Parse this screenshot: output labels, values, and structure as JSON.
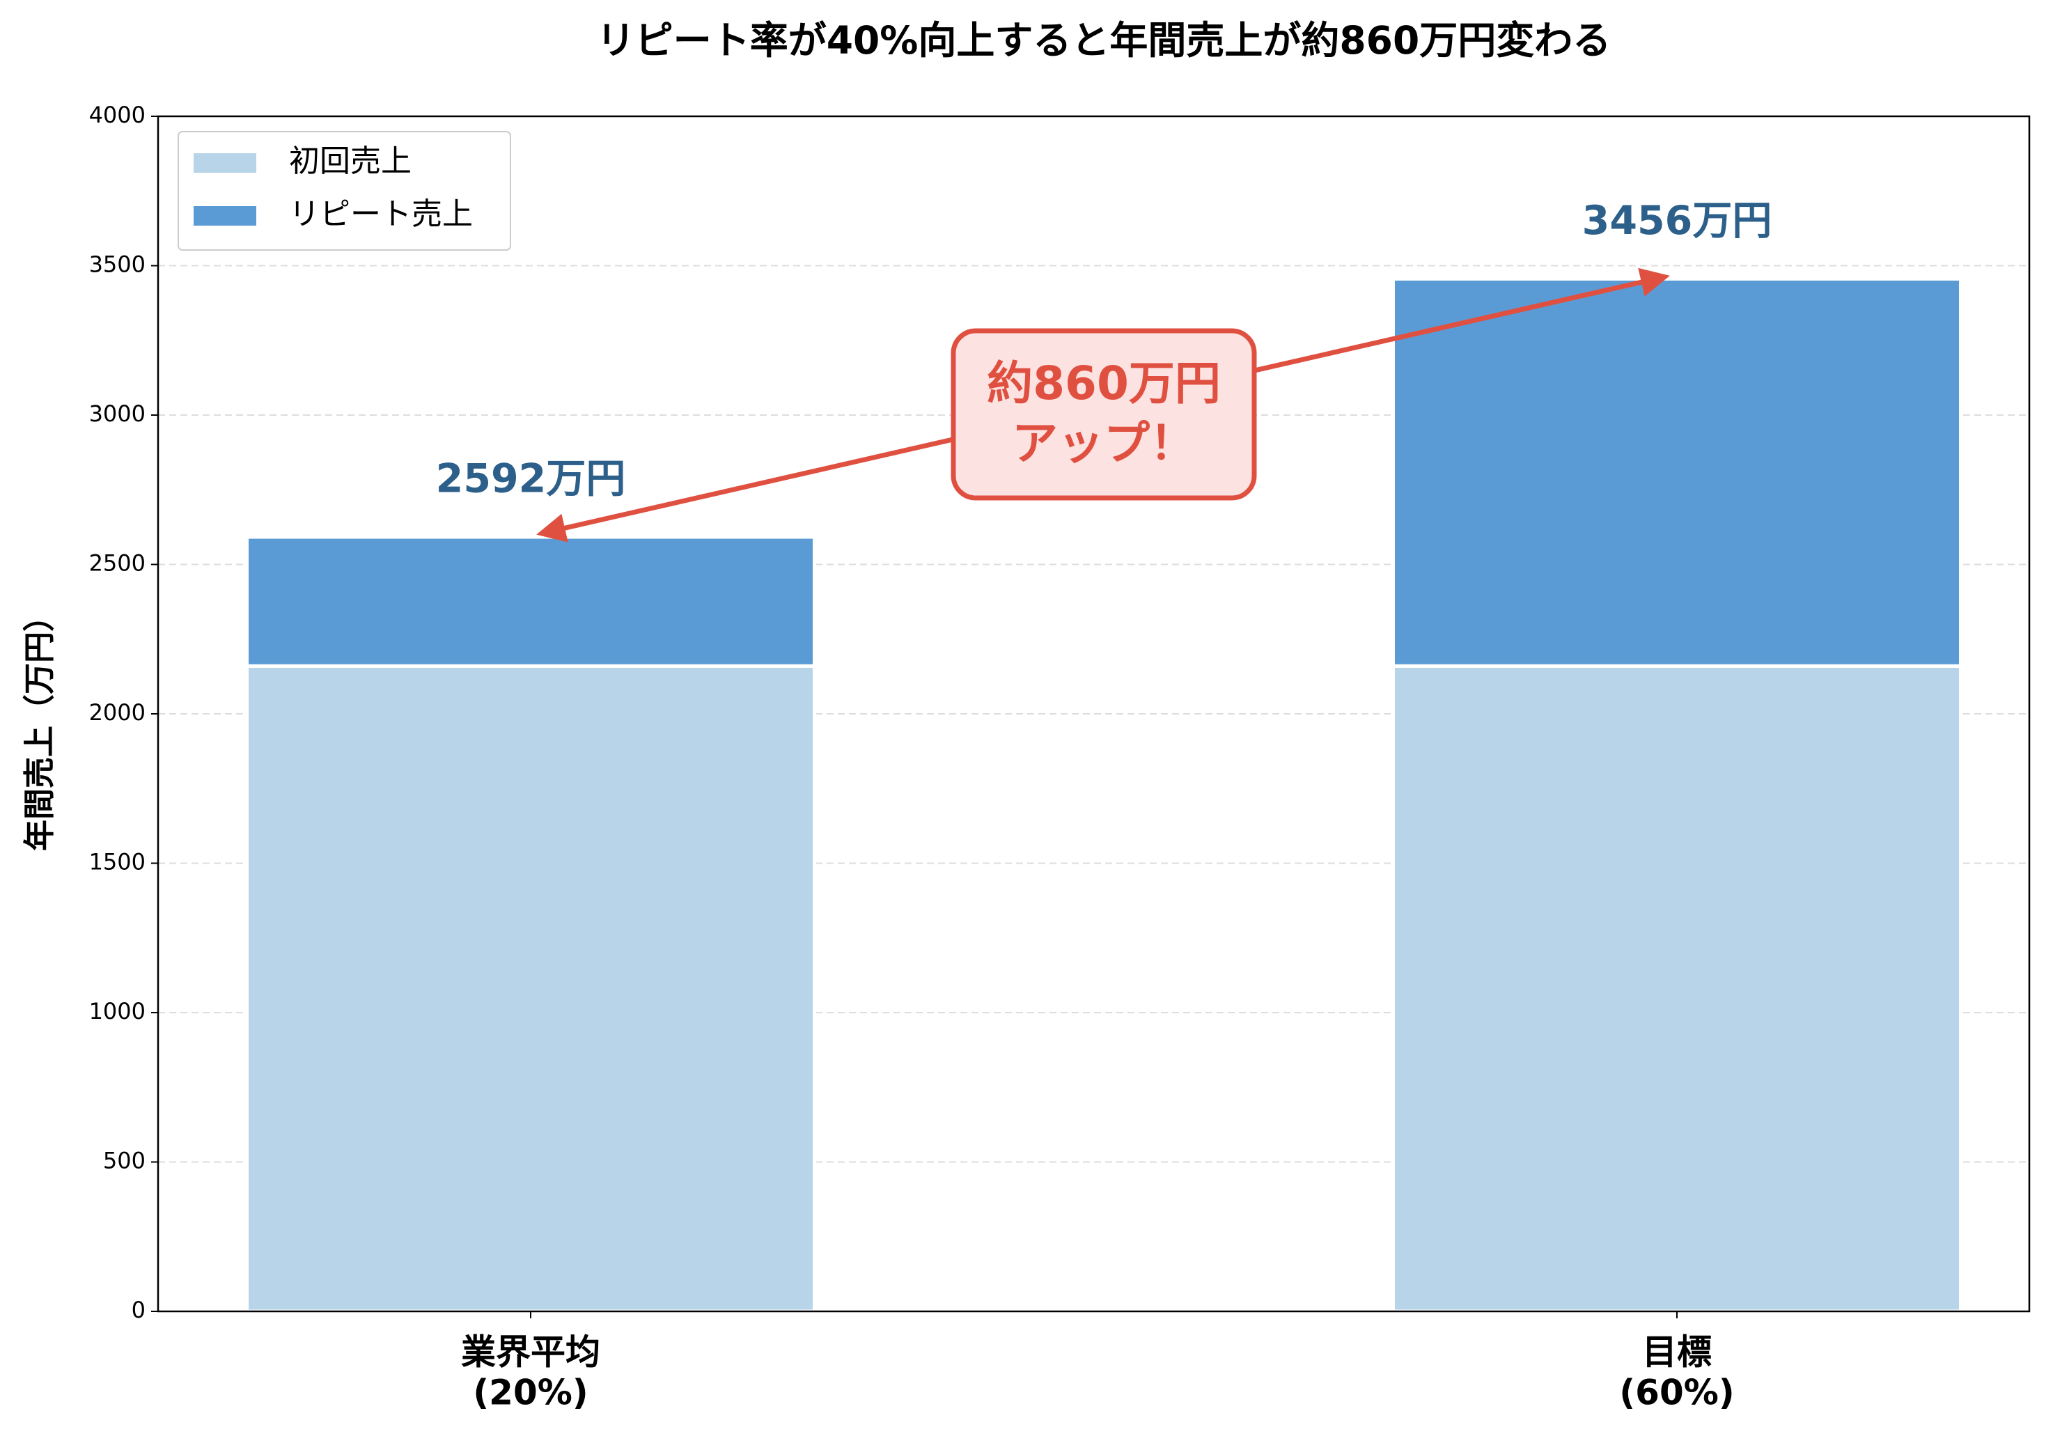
{
  "chart_data": {
    "type": "stacked-bar",
    "title": "リピート率が40%向上すると年間売上が約860万円変わる",
    "y_label": "年間売上（万円）",
    "categories": [
      [
        "業界平均",
        "(20%)"
      ],
      [
        "目標",
        "(60%)"
      ]
    ],
    "series": [
      {
        "name": "初回売上",
        "color": "#b8d4e8",
        "values": [
          2160,
          2160
        ]
      },
      {
        "name": "リピート売上",
        "color": "#5b9bd5",
        "values": [
          432,
          1296
        ]
      }
    ],
    "totals": [
      2592,
      3456
    ],
    "total_labels": [
      "2592万円",
      "3456万円"
    ],
    "annotation": [
      "約860万円",
      "アップ！"
    ],
    "annotation_color": "#e05040",
    "ylim": [
      0,
      4000
    ],
    "yticks": [
      0,
      500,
      1000,
      1500,
      2000,
      2500,
      3000,
      3500,
      4000
    ],
    "grid": true,
    "legend": "upper left"
  }
}
